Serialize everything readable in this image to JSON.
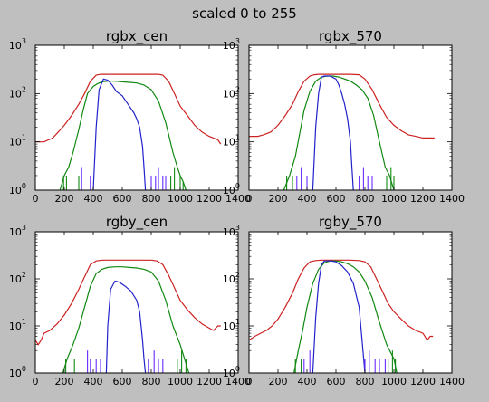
{
  "figure": {
    "title": "scaled 0 to 255",
    "background": "#bfbfbf",
    "series_colors": {
      "red": "#cc2222",
      "green": "#118811",
      "blue": "#2222cc",
      "spike": "#6a2bff"
    }
  },
  "chart_data": [
    {
      "type": "line",
      "title": "rgbx_cen",
      "xlim": [
        0,
        1400
      ],
      "ylim": [
        1,
        1000
      ],
      "yscale": "log",
      "xticks": [
        "0",
        "200",
        "400",
        "600",
        "800",
        "1000",
        "1200",
        "1400"
      ],
      "yticks": [
        {
          "base": "10",
          "exp": "0"
        },
        {
          "base": "10",
          "exp": "1"
        },
        {
          "base": "10",
          "exp": "2"
        },
        {
          "base": "10",
          "exp": "3"
        }
      ],
      "series": [
        {
          "color": "#cc2222",
          "x": [
            0,
            60,
            90,
            120,
            150,
            200,
            250,
            300,
            340,
            380,
            420,
            450,
            480,
            520,
            600,
            700,
            800,
            850,
            880,
            920,
            960,
            1000,
            1050,
            1100,
            1150,
            1200,
            1230,
            1260,
            1280
          ],
          "y": [
            10,
            10,
            11,
            12,
            15,
            22,
            35,
            60,
            100,
            180,
            240,
            250,
            250,
            250,
            250,
            250,
            250,
            250,
            240,
            180,
            100,
            55,
            35,
            22,
            16,
            13,
            12,
            11,
            9
          ]
        },
        {
          "color": "#118811",
          "x": [
            170,
            200,
            230,
            260,
            300,
            330,
            360,
            400,
            430,
            460,
            500,
            550,
            600,
            650,
            700,
            750,
            800,
            850,
            900,
            950,
            980,
            1000,
            1020,
            1040
          ],
          "y": [
            1,
            2,
            3,
            6,
            18,
            45,
            100,
            140,
            160,
            175,
            180,
            180,
            175,
            170,
            165,
            150,
            120,
            70,
            25,
            6,
            3,
            2,
            1.5,
            1
          ]
        },
        {
          "color": "#2222cc",
          "x": [
            400,
            420,
            440,
            470,
            500,
            530,
            560,
            600,
            640,
            680,
            700,
            720,
            740,
            750,
            760
          ],
          "y": [
            1,
            20,
            120,
            200,
            190,
            150,
            110,
            90,
            60,
            40,
            30,
            20,
            8,
            3,
            1
          ]
        }
      ],
      "spikes": [
        {
          "color": "#118811",
          "x": [
            195,
            215,
            300,
            935,
            960,
            1000,
            1020
          ],
          "y": [
            2,
            2,
            2,
            2,
            3,
            2,
            1.5
          ]
        },
        {
          "color": "#6a2bff",
          "x": [
            320,
            380,
            800,
            830,
            850,
            880,
            900
          ],
          "y": [
            3,
            2,
            2,
            2,
            3,
            2,
            2
          ]
        }
      ]
    },
    {
      "type": "line",
      "title": "rgbx_570",
      "xlim": [
        0,
        1400
      ],
      "ylim": [
        1,
        1000
      ],
      "yscale": "log",
      "xticks": [
        "0",
        "200",
        "400",
        "600",
        "800",
        "1000",
        "1200",
        "1400"
      ],
      "yticks": [
        {
          "base": "10",
          "exp": "0"
        },
        {
          "base": "10",
          "exp": "1"
        },
        {
          "base": "10",
          "exp": "2"
        },
        {
          "base": "10",
          "exp": "3"
        }
      ],
      "series": [
        {
          "color": "#cc2222",
          "x": [
            0,
            60,
            100,
            150,
            200,
            250,
            300,
            340,
            380,
            420,
            450,
            480,
            520,
            600,
            700,
            760,
            800,
            850,
            900,
            950,
            1000,
            1050,
            1100,
            1150,
            1200,
            1250,
            1280
          ],
          "y": [
            13,
            13,
            14,
            16,
            22,
            35,
            60,
            110,
            180,
            230,
            245,
            250,
            250,
            250,
            250,
            245,
            200,
            120,
            60,
            32,
            22,
            17,
            14,
            13,
            12,
            12,
            12
          ]
        },
        {
          "color": "#118811",
          "x": [
            240,
            280,
            320,
            350,
            380,
            420,
            460,
            500,
            540,
            580,
            620,
            660,
            700,
            740,
            780,
            820,
            860,
            900,
            940,
            970,
            1000
          ],
          "y": [
            1,
            2,
            5,
            15,
            45,
            110,
            180,
            220,
            230,
            230,
            220,
            200,
            180,
            150,
            120,
            80,
            35,
            10,
            3,
            2,
            1
          ]
        },
        {
          "color": "#2222cc",
          "x": [
            440,
            460,
            480,
            500,
            520,
            560,
            600,
            620,
            640,
            660,
            680,
            700,
            710,
            720
          ],
          "y": [
            1,
            20,
            100,
            220,
            230,
            230,
            200,
            150,
            100,
            60,
            30,
            10,
            3,
            1
          ]
        }
      ],
      "spikes": [
        {
          "color": "#118811",
          "x": [
            260,
            300,
            950,
            980,
            1000
          ],
          "y": [
            2,
            2,
            2,
            3,
            2
          ]
        },
        {
          "color": "#6a2bff",
          "x": [
            330,
            360,
            400,
            760,
            790,
            820,
            850
          ],
          "y": [
            2,
            3,
            2,
            2,
            3,
            2,
            2
          ]
        }
      ]
    },
    {
      "type": "line",
      "title": "rgby_cen",
      "xlim": [
        0,
        1400
      ],
      "ylim": [
        1,
        1000
      ],
      "yscale": "log",
      "xticks": [
        "0",
        "200",
        "400",
        "600",
        "800",
        "1000",
        "1200",
        "1400"
      ],
      "yticks": [
        {
          "base": "10",
          "exp": "0"
        },
        {
          "base": "10",
          "exp": "1"
        },
        {
          "base": "10",
          "exp": "2"
        },
        {
          "base": "10",
          "exp": "3"
        }
      ],
      "series": [
        {
          "color": "#cc2222",
          "x": [
            0,
            20,
            40,
            60,
            100,
            150,
            200,
            250,
            300,
            340,
            380,
            420,
            460,
            500,
            600,
            700,
            800,
            840,
            880,
            920,
            960,
            1000,
            1050,
            1100,
            1150,
            1200,
            1230,
            1260,
            1280
          ],
          "y": [
            5,
            4,
            5,
            7,
            8,
            11,
            17,
            30,
            60,
            110,
            200,
            240,
            250,
            250,
            250,
            250,
            250,
            240,
            200,
            120,
            65,
            35,
            22,
            15,
            11,
            9,
            8,
            10,
            10
          ]
        },
        {
          "color": "#118811",
          "x": [
            190,
            220,
            260,
            300,
            340,
            380,
            420,
            460,
            500,
            550,
            600,
            650,
            700,
            750,
            800,
            850,
            900,
            950,
            1000,
            1030,
            1060
          ],
          "y": [
            1,
            2,
            4,
            9,
            25,
            70,
            130,
            160,
            175,
            180,
            180,
            175,
            170,
            160,
            140,
            90,
            35,
            10,
            4,
            2,
            1
          ]
        },
        {
          "color": "#2222cc",
          "x": [
            490,
            500,
            520,
            550,
            580,
            620,
            660,
            700,
            720,
            740,
            750,
            760
          ],
          "y": [
            1,
            10,
            60,
            90,
            85,
            70,
            55,
            35,
            20,
            5,
            2,
            1
          ]
        }
      ],
      "spikes": [
        {
          "color": "#118811",
          "x": [
            210,
            270,
            980,
            1010,
            1040
          ],
          "y": [
            2,
            2,
            2,
            3,
            2
          ]
        },
        {
          "color": "#6a2bff",
          "x": [
            360,
            380,
            420,
            450,
            780,
            820,
            850,
            880
          ],
          "y": [
            3,
            2,
            2,
            2,
            2,
            3,
            2,
            2
          ]
        }
      ]
    },
    {
      "type": "line",
      "title": "rgby_570",
      "xlim": [
        0,
        1400
      ],
      "ylim": [
        1,
        1000
      ],
      "yscale": "log",
      "xticks": [
        "0",
        "200",
        "400",
        "600",
        "800",
        "1000",
        "1200",
        "1400"
      ],
      "yticks": [
        {
          "base": "10",
          "exp": "0"
        },
        {
          "base": "10",
          "exp": "1"
        },
        {
          "base": "10",
          "exp": "2"
        },
        {
          "base": "10",
          "exp": "3"
        }
      ],
      "series": [
        {
          "color": "#cc2222",
          "x": [
            0,
            40,
            80,
            120,
            160,
            200,
            250,
            300,
            340,
            380,
            420,
            460,
            500,
            600,
            700,
            760,
            800,
            840,
            880,
            920,
            960,
            1000,
            1050,
            1100,
            1150,
            1200,
            1230,
            1250,
            1270
          ],
          "y": [
            5,
            6,
            7,
            8,
            10,
            14,
            25,
            50,
            100,
            170,
            230,
            245,
            250,
            250,
            250,
            245,
            230,
            180,
            100,
            55,
            30,
            20,
            14,
            10,
            8,
            7,
            5,
            6,
            6
          ]
        },
        {
          "color": "#118811",
          "x": [
            310,
            340,
            370,
            400,
            440,
            480,
            520,
            560,
            600,
            640,
            680,
            720,
            760,
            800,
            850,
            900,
            950,
            1000,
            1020
          ],
          "y": [
            1,
            3,
            8,
            25,
            80,
            160,
            220,
            240,
            240,
            230,
            210,
            180,
            140,
            90,
            40,
            12,
            4,
            2,
            1
          ]
        },
        {
          "color": "#2222cc",
          "x": [
            440,
            460,
            480,
            500,
            520,
            560,
            600,
            640,
            680,
            720,
            760,
            780,
            800
          ],
          "y": [
            1,
            15,
            80,
            200,
            240,
            240,
            230,
            190,
            140,
            80,
            25,
            5,
            1
          ]
        }
      ],
      "spikes": [
        {
          "color": "#118811",
          "x": [
            320,
            360,
            960,
            990,
            1010
          ],
          "y": [
            2,
            2,
            2,
            3,
            2
          ]
        },
        {
          "color": "#6a2bff",
          "x": [
            380,
            420,
            800,
            830,
            870,
            900,
            940
          ],
          "y": [
            2,
            3,
            2,
            3,
            2,
            2,
            2
          ]
        }
      ]
    }
  ]
}
